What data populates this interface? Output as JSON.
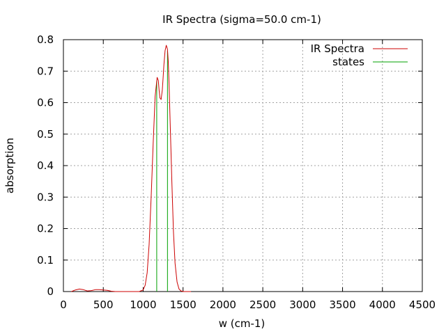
{
  "chart_data": {
    "type": "line",
    "title": "IR Spectra (sigma=50.0 cm-1)",
    "xlabel": "w (cm-1)",
    "ylabel": "absorption",
    "xlim": [
      0,
      4500
    ],
    "ylim": [
      0,
      0.8
    ],
    "xticks": [
      "0",
      "500",
      "1000",
      "1500",
      "2000",
      "2500",
      "3000",
      "3500",
      "4000",
      "4500"
    ],
    "yticks": [
      "0",
      "0.1",
      "0.2",
      "0.3",
      "0.4",
      "0.5",
      "0.6",
      "0.7",
      "0.8"
    ],
    "grid": true,
    "legend_position": "top-right",
    "colors": {
      "spectrum": "#cc0000",
      "states": "#00a000"
    },
    "series": [
      {
        "name": "IR Spectra",
        "x": [
          100,
          150,
          200,
          250,
          300,
          350,
          400,
          450,
          500,
          550,
          600,
          650,
          700,
          750,
          800,
          850,
          900,
          950,
          1000,
          1025,
          1050,
          1075,
          1100,
          1125,
          1150,
          1175,
          1190,
          1200,
          1210,
          1225,
          1240,
          1250,
          1260,
          1275,
          1290,
          1305,
          1315,
          1325,
          1340,
          1360,
          1380,
          1400,
          1425,
          1450,
          1475,
          1500,
          1550,
          1600
        ],
        "y": [
          0,
          0.005,
          0.008,
          0.006,
          0.002,
          0.003,
          0.006,
          0.006,
          0.005,
          0.004,
          0.001,
          0,
          0,
          0,
          0,
          0,
          0,
          0,
          0.005,
          0.02,
          0.06,
          0.15,
          0.3,
          0.47,
          0.62,
          0.68,
          0.67,
          0.64,
          0.615,
          0.61,
          0.64,
          0.68,
          0.72,
          0.765,
          0.782,
          0.77,
          0.73,
          0.66,
          0.52,
          0.35,
          0.19,
          0.09,
          0.03,
          0.008,
          0.002,
          0,
          0,
          0
        ]
      },
      {
        "name": "states",
        "type": "impulse",
        "x": [
          1170,
          1305
        ],
        "y": [
          0.67,
          0.765
        ]
      }
    ]
  }
}
